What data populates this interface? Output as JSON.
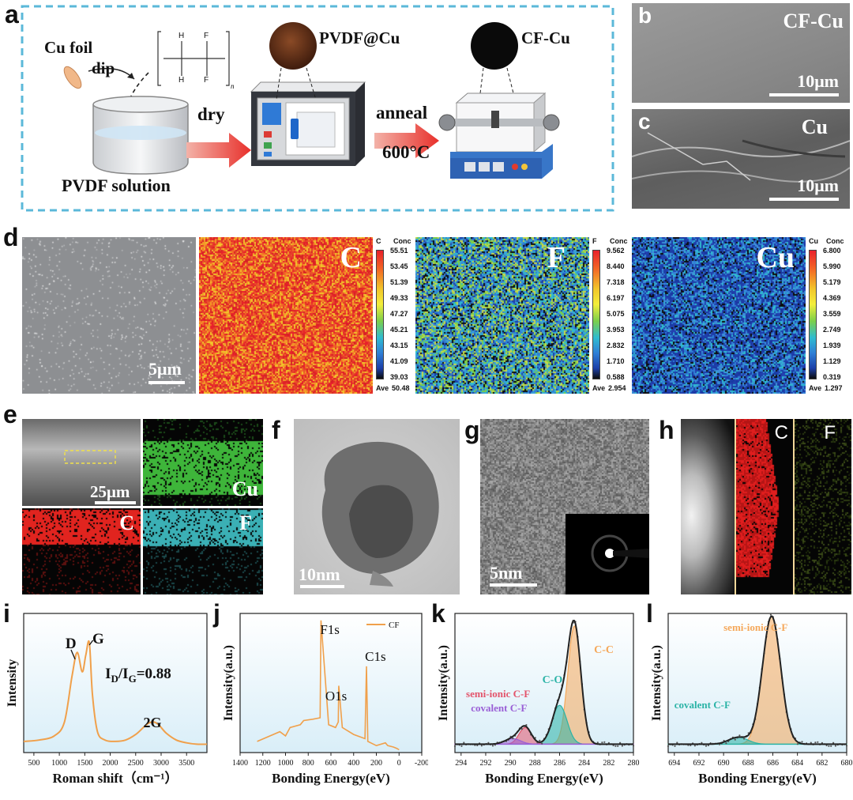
{
  "panels": {
    "a": "a",
    "b": "b",
    "c": "c",
    "d": "d",
    "e": "e",
    "f": "f",
    "g": "g",
    "h": "h",
    "i": "i",
    "j": "j",
    "k": "k",
    "l": "l"
  },
  "schematic": {
    "cu_foil": "Cu foil",
    "dip": "dip",
    "pvdf_solution": "PVDF solution",
    "dry": "dry",
    "pvdf_cu": "PVDF@Cu",
    "anneal": "anneal",
    "temperature": "600°C",
    "cf_cu": "CF-Cu",
    "monomer_h": "H",
    "monomer_f": "F",
    "monomer_n": "n"
  },
  "sem": {
    "b_label": "CF-Cu",
    "c_label": "Cu",
    "scale_10um": "10μm",
    "scale_5um": "5μm",
    "scale_25um": "25μm",
    "scale_10nm": "10nm",
    "scale_5nm": "5nm"
  },
  "eds_d": {
    "C": {
      "label": "C",
      "header": "C",
      "conc": "Conc",
      "ticks": [
        "55.51",
        "53.45",
        "51.39",
        "49.33",
        "47.27",
        "45.21",
        "43.15",
        "41.09",
        "39.03"
      ],
      "ave_label": "Ave",
      "ave": "50.48",
      "fill": 0.92
    },
    "F": {
      "label": "F",
      "header": "F",
      "conc": "Conc",
      "ticks": [
        "9.562",
        "8.440",
        "7.318",
        "6.197",
        "5.075",
        "3.953",
        "2.832",
        "1.710",
        "0.588"
      ],
      "ave_label": "Ave",
      "ave": "2.954",
      "fill": 0.5
    },
    "Cu": {
      "label": "Cu",
      "header": "Cu",
      "conc": "Conc",
      "ticks": [
        "6.800",
        "5.990",
        "5.179",
        "4.369",
        "3.559",
        "2.749",
        "1.939",
        "1.129",
        "0.319"
      ],
      "ave_label": "Ave",
      "ave": "1.297",
      "fill": 0.3
    }
  },
  "eds_e": {
    "cu": "Cu",
    "c": "C",
    "f": "F"
  },
  "eds_h": {
    "c": "C",
    "f": "F"
  },
  "colors": {
    "dashed_frame": "#5bb8d9",
    "raman_line": "#f0a04b",
    "xps_fit_black": "#222222",
    "cc_peak": "#f5a85a",
    "co_peak": "#2ab3a6",
    "semi_ionic_peak": "#e3546b",
    "covalent_peak": "#9a5fd6",
    "plot_bg_top": "#ffffff",
    "plot_bg_bottom": "#d9eef8"
  },
  "chart_data": [
    {
      "panel": "i",
      "type": "line",
      "xlabel": "Roman shift（cm⁻¹）",
      "ylabel": "Intensity",
      "xticks": [
        "500",
        "1000",
        "1500",
        "2000",
        "2500",
        "3000",
        "3500"
      ],
      "xlim": [
        300,
        3900
      ],
      "annotations": [
        "D",
        "G",
        "2G"
      ],
      "ratio_label_main": "I",
      "ratio_sub_d": "D",
      "ratio_slash": "/I",
      "ratio_sub_g": "G",
      "ratio_value": "=0.88",
      "series": [
        {
          "x": [
            300,
            600,
            900,
            1100,
            1250,
            1350,
            1450,
            1520,
            1590,
            1650,
            1750,
            1900,
            2100,
            2300,
            2500,
            2650,
            2750,
            2850,
            2950,
            3100,
            3300,
            3500,
            3700,
            3900
          ],
          "y": [
            0.08,
            0.09,
            0.12,
            0.22,
            0.55,
            0.72,
            0.58,
            0.7,
            0.79,
            0.42,
            0.15,
            0.09,
            0.08,
            0.09,
            0.13,
            0.18,
            0.21,
            0.22,
            0.2,
            0.14,
            0.09,
            0.07,
            0.06,
            0.06
          ]
        }
      ]
    },
    {
      "panel": "j",
      "type": "line",
      "xlabel": "Bonding Energy(eV)",
      "ylabel": "Intensity(a.u.)",
      "xticks": [
        "1400",
        "1200",
        "1000",
        "800",
        "600",
        "400",
        "200",
        "0",
        "-200"
      ],
      "xlim": [
        1400,
        -200
      ],
      "legend": "CF",
      "peaks": [
        "F1s",
        "O1s",
        "C1s"
      ],
      "series": [
        {
          "name": "CF",
          "x": [
            1250,
            1050,
            1000,
            960,
            870,
            840,
            760,
            695,
            688,
            620,
            560,
            535,
            531,
            500,
            400,
            300,
            287,
            275,
            200,
            120,
            100,
            50,
            20,
            0
          ],
          "y": [
            0.08,
            0.15,
            0.12,
            0.18,
            0.2,
            0.23,
            0.24,
            0.25,
            0.95,
            0.2,
            0.18,
            0.22,
            0.48,
            0.18,
            0.13,
            0.1,
            0.62,
            0.08,
            0.05,
            0.07,
            0.05,
            0.04,
            0.03,
            0.02
          ]
        }
      ]
    },
    {
      "panel": "k",
      "type": "line",
      "xlabel": "Bonding Energy(eV)",
      "ylabel": "Intensity(a.u.)",
      "xticks": [
        "294",
        "292",
        "290",
        "288",
        "286",
        "284",
        "282",
        "280"
      ],
      "xlim": [
        294.5,
        280
      ],
      "peak_labels": [
        "C-C",
        "C-O",
        "semi-ionic C-F",
        "covalent C-F"
      ],
      "components": [
        {
          "name": "C-C",
          "center": 284.8,
          "width": 0.75,
          "height": 0.85
        },
        {
          "name": "C-O",
          "center": 286.0,
          "width": 0.85,
          "height": 0.28
        },
        {
          "name": "semi-ionic C-F",
          "center": 288.8,
          "width": 0.7,
          "height": 0.12
        },
        {
          "name": "covalent C-F",
          "center": 289.8,
          "width": 0.9,
          "height": 0.04
        }
      ]
    },
    {
      "panel": "l",
      "type": "line",
      "xlabel": "Bonding Energy(eV)",
      "ylabel": "Intensity(a.u.)",
      "xticks": [
        "694",
        "692",
        "690",
        "688",
        "686",
        "684",
        "682",
        "680"
      ],
      "xlim": [
        694.5,
        680
      ],
      "peak_labels": [
        "semi-ionic C-F",
        "covalent C-F"
      ],
      "components": [
        {
          "name": "semi-ionic C-F",
          "center": 686.1,
          "width": 1.05,
          "height": 0.92
        },
        {
          "name": "covalent C-F",
          "center": 688.8,
          "width": 1.1,
          "height": 0.05
        }
      ]
    }
  ]
}
